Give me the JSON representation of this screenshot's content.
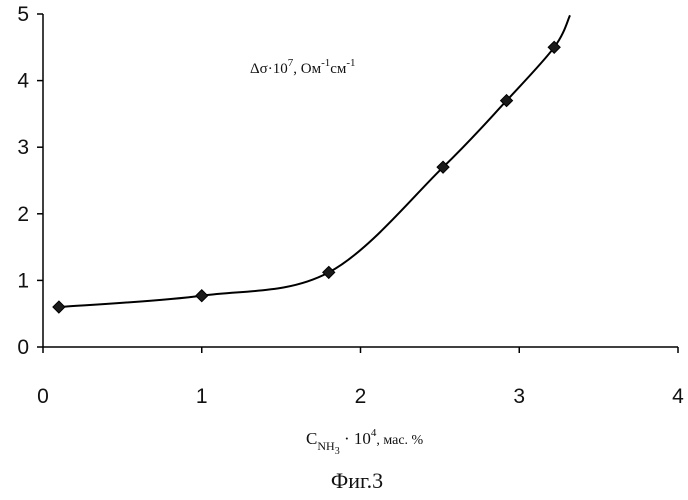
{
  "chart_data": {
    "type": "line",
    "marker": "diamond",
    "smooth": true,
    "points": [
      {
        "x": 0.1,
        "y": 0.6
      },
      {
        "x": 1.0,
        "y": 0.77
      },
      {
        "x": 1.8,
        "y": 1.12
      },
      {
        "x": 2.52,
        "y": 2.7
      },
      {
        "x": 2.92,
        "y": 3.7
      },
      {
        "x": 3.22,
        "y": 4.5
      }
    ],
    "curve_end": {
      "x": 3.32,
      "y": 4.98
    },
    "xlim": [
      0,
      4
    ],
    "ylim": [
      0,
      5
    ],
    "x_ticks": [
      "0",
      "1",
      "2",
      "3",
      "4"
    ],
    "y_ticks": [
      "0",
      "1",
      "2",
      "3",
      "4",
      "5"
    ],
    "ylabel": {
      "main": "Δσ·10",
      "exp": "7",
      "unit1": ", Ом",
      "unit1_exp": "-1",
      "unit2": "см",
      "unit2_exp": "-1"
    },
    "xlabel": {
      "main": "C",
      "sub": "NH",
      "sub2": "3",
      "mid": " · 10",
      "exp": "4",
      "unit": ", мас. %"
    },
    "caption": "Фиг.3",
    "grid": false,
    "colors": {
      "line": "#000000",
      "marker_fill": "#1a1a1a",
      "axis": "#000000"
    }
  }
}
